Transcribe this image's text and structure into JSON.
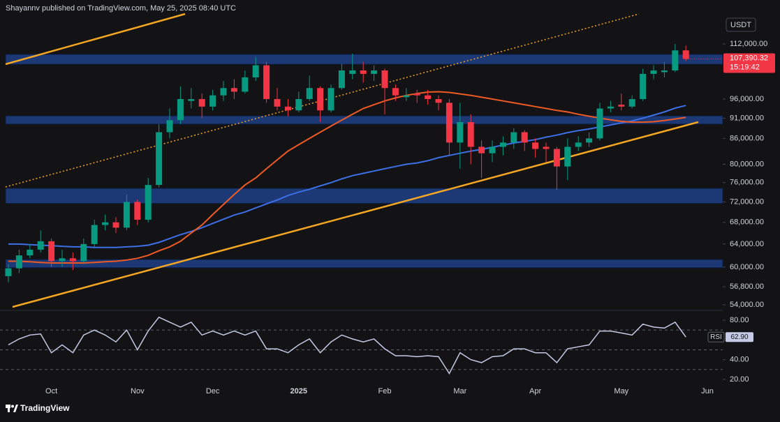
{
  "header": {
    "text": "Shayannv published on TradingView.com, May 25, 2025 08:40 UTC"
  },
  "footer": {
    "brand": "TradingView"
  },
  "chart_data": {
    "type": "candlestick",
    "currency": "USDT",
    "categories": [
      null,
      null,
      null,
      null,
      "Oct",
      null,
      null,
      null,
      null,
      null,
      null,
      null,
      "Nov",
      null,
      null,
      null,
      null,
      null,
      null,
      "Dec",
      null,
      null,
      null,
      null,
      null,
      null,
      null,
      "2025",
      null,
      null,
      null,
      null,
      null,
      null,
      null,
      "Feb",
      null,
      null,
      null,
      null,
      null,
      null,
      "Mar",
      null,
      null,
      null,
      null,
      null,
      null,
      "Apr",
      null,
      null,
      null,
      null,
      null,
      null,
      null,
      "May",
      null,
      null,
      null,
      null,
      null,
      null,
      null,
      "Jun",
      null
    ],
    "open": [
      58500,
      59800,
      62000,
      63000,
      64500,
      61000,
      61500,
      61000,
      64000,
      67500,
      68000,
      67000,
      72000,
      68500,
      75500,
      87500,
      90500,
      95500,
      96000,
      94000,
      97000,
      99000,
      98000,
      102000,
      105500,
      96000,
      94000,
      93000,
      96000,
      99000,
      93000,
      99000,
      103000,
      104000,
      103000,
      104000,
      99000,
      96500,
      97500,
      97000,
      96000,
      95000,
      85000,
      90000,
      84000,
      82500,
      84000,
      85000,
      87500,
      85000,
      84000,
      83500,
      79500,
      84000,
      85000,
      86000,
      93500,
      94500,
      94000,
      96000,
      103000,
      103500,
      104000,
      110000,
      null,
      null,
      null
    ],
    "high": [
      60500,
      63000,
      64000,
      66500,
      65000,
      63000,
      62500,
      65000,
      68500,
      69500,
      69000,
      73500,
      72500,
      77000,
      89500,
      93500,
      99500,
      99000,
      97500,
      98500,
      101000,
      101500,
      104000,
      108000,
      106500,
      99000,
      96000,
      98000,
      102500,
      99500,
      100000,
      106000,
      109000,
      106500,
      105500,
      104500,
      100000,
      99000,
      98500,
      98500,
      97000,
      96000,
      95000,
      92000,
      85500,
      85500,
      86500,
      88500,
      88000,
      86000,
      85000,
      84000,
      86000,
      86500,
      87500,
      95000,
      95500,
      97500,
      97000,
      104500,
      105500,
      106500,
      112000,
      111500,
      null,
      null,
      null
    ],
    "low": [
      57500,
      59000,
      61500,
      62500,
      60000,
      60000,
      59500,
      60500,
      63500,
      66500,
      66000,
      66500,
      67500,
      68000,
      75000,
      86000,
      89500,
      93500,
      91000,
      93000,
      95500,
      96000,
      97500,
      101000,
      95000,
      93000,
      91500,
      92500,
      95500,
      90000,
      92500,
      98500,
      101500,
      100500,
      101000,
      92000,
      95500,
      95500,
      95000,
      94500,
      93000,
      82000,
      79000,
      80000,
      77000,
      80500,
      82000,
      83500,
      83000,
      81500,
      80500,
      74500,
      76500,
      83000,
      84000,
      85500,
      92500,
      93000,
      93500,
      95500,
      101500,
      102000,
      103500,
      106800,
      null,
      null,
      null
    ],
    "close": [
      59800,
      62000,
      63000,
      64500,
      61000,
      61500,
      61000,
      64000,
      67500,
      68000,
      67000,
      72000,
      68500,
      75500,
      87500,
      90500,
      96000,
      96000,
      94000,
      97000,
      99000,
      98000,
      102000,
      105500,
      96000,
      94000,
      93000,
      96000,
      99000,
      93000,
      99000,
      104000,
      104000,
      103000,
      104000,
      99000,
      97000,
      97000,
      97000,
      96000,
      95000,
      85000,
      90000,
      84000,
      82500,
      84000,
      85000,
      87500,
      85000,
      83500,
      83500,
      79500,
      84000,
      85000,
      86000,
      93500,
      94000,
      94000,
      96000,
      103000,
      104000,
      104000,
      110000,
      107390.32,
      null,
      null,
      null
    ],
    "up_color": "#089981",
    "down_color": "#f23645",
    "ylim": [
      53160,
      121800
    ],
    "log_scale": true,
    "grid": false,
    "yticks": [
      {
        "value": 112000,
        "label": "112,000.00"
      },
      {
        "value": 96000,
        "label": "96,000.00"
      },
      {
        "value": 91000,
        "label": "91,000.00"
      },
      {
        "value": 86000,
        "label": "86,000.00"
      },
      {
        "value": 80000,
        "label": "80,000.00"
      },
      {
        "value": 76000,
        "label": "76,000.00"
      },
      {
        "value": 72000,
        "label": "72,000.00"
      },
      {
        "value": 68000,
        "label": "68,000.00"
      },
      {
        "value": 64000,
        "label": "64,000.00"
      },
      {
        "value": 60000,
        "label": "60,000.00"
      },
      {
        "value": 56800,
        "label": "56,800.00"
      },
      {
        "value": 54000,
        "label": "54,000.00"
      }
    ],
    "series": [
      {
        "color": "#3d6fe6",
        "values": [
          64000,
          64000,
          63900,
          63800,
          63700,
          63600,
          63500,
          63500,
          63400,
          63400,
          63400,
          63500,
          63600,
          63800,
          64300,
          65000,
          65700,
          66300,
          67000,
          67800,
          68600,
          69400,
          70000,
          70800,
          71600,
          72400,
          73300,
          74000,
          74600,
          75300,
          76000,
          76800,
          77500,
          78000,
          78500,
          79000,
          79500,
          80000,
          80300,
          80800,
          81500,
          82000,
          82500,
          83000,
          83400,
          83900,
          84400,
          84900,
          85300,
          85700,
          86300,
          86800,
          87400,
          87900,
          88300,
          88800,
          89300,
          89800,
          90300,
          91000,
          91800,
          92600,
          93600,
          94300,
          null,
          null,
          null
        ]
      },
      {
        "color": "#ee5a24",
        "values": [
          61000,
          61000,
          60900,
          60800,
          60700,
          60700,
          60700,
          60700,
          60800,
          60900,
          61000,
          61200,
          61500,
          62000,
          62800,
          63500,
          64500,
          66000,
          67500,
          69500,
          71500,
          73500,
          75500,
          77000,
          79000,
          81000,
          83000,
          84500,
          86000,
          87500,
          89000,
          90500,
          92000,
          93500,
          94500,
          95500,
          96300,
          97000,
          97500,
          97900,
          98000,
          97800,
          97400,
          97000,
          96500,
          96000,
          95500,
          95000,
          94500,
          94000,
          93500,
          93000,
          92600,
          92000,
          91500,
          91000,
          90600,
          90200,
          90000,
          90000,
          90100,
          90400,
          90800,
          91200,
          null,
          null,
          null
        ]
      }
    ],
    "zones": [
      [
        105800,
        108800
      ],
      [
        89500,
        91600
      ],
      [
        71700,
        74800
      ],
      [
        59900,
        61300
      ]
    ],
    "zone_color": "#1f3f86",
    "last_price_label": "107,390.32",
    "countdown": "15:19:42",
    "rsi": {
      "type": "line",
      "name": "RSI",
      "color": "#c5cbe6",
      "values": [
        55,
        61,
        65,
        66,
        47,
        55,
        47,
        65,
        70,
        65,
        58,
        70,
        50,
        69,
        83,
        78,
        73,
        78,
        65,
        69,
        65,
        69,
        65,
        69,
        51,
        51,
        47,
        55,
        61,
        47,
        58,
        65,
        61,
        58,
        61,
        51,
        44,
        44,
        43,
        44,
        43,
        26,
        47,
        40,
        37,
        43,
        44,
        51,
        51,
        47,
        47,
        37,
        51,
        53,
        55,
        69,
        69,
        67,
        65,
        76,
        73,
        72,
        78,
        62.9,
        null,
        null,
        null
      ],
      "last_label": "62.90",
      "levels": [
        70,
        50,
        30
      ],
      "ylim": [
        13.6,
        88.5
      ],
      "yticks": [
        {
          "value": 80,
          "label": "80.00"
        },
        {
          "value": 40,
          "label": "40.00"
        },
        {
          "value": 20,
          "label": "20.00"
        }
      ]
    }
  }
}
